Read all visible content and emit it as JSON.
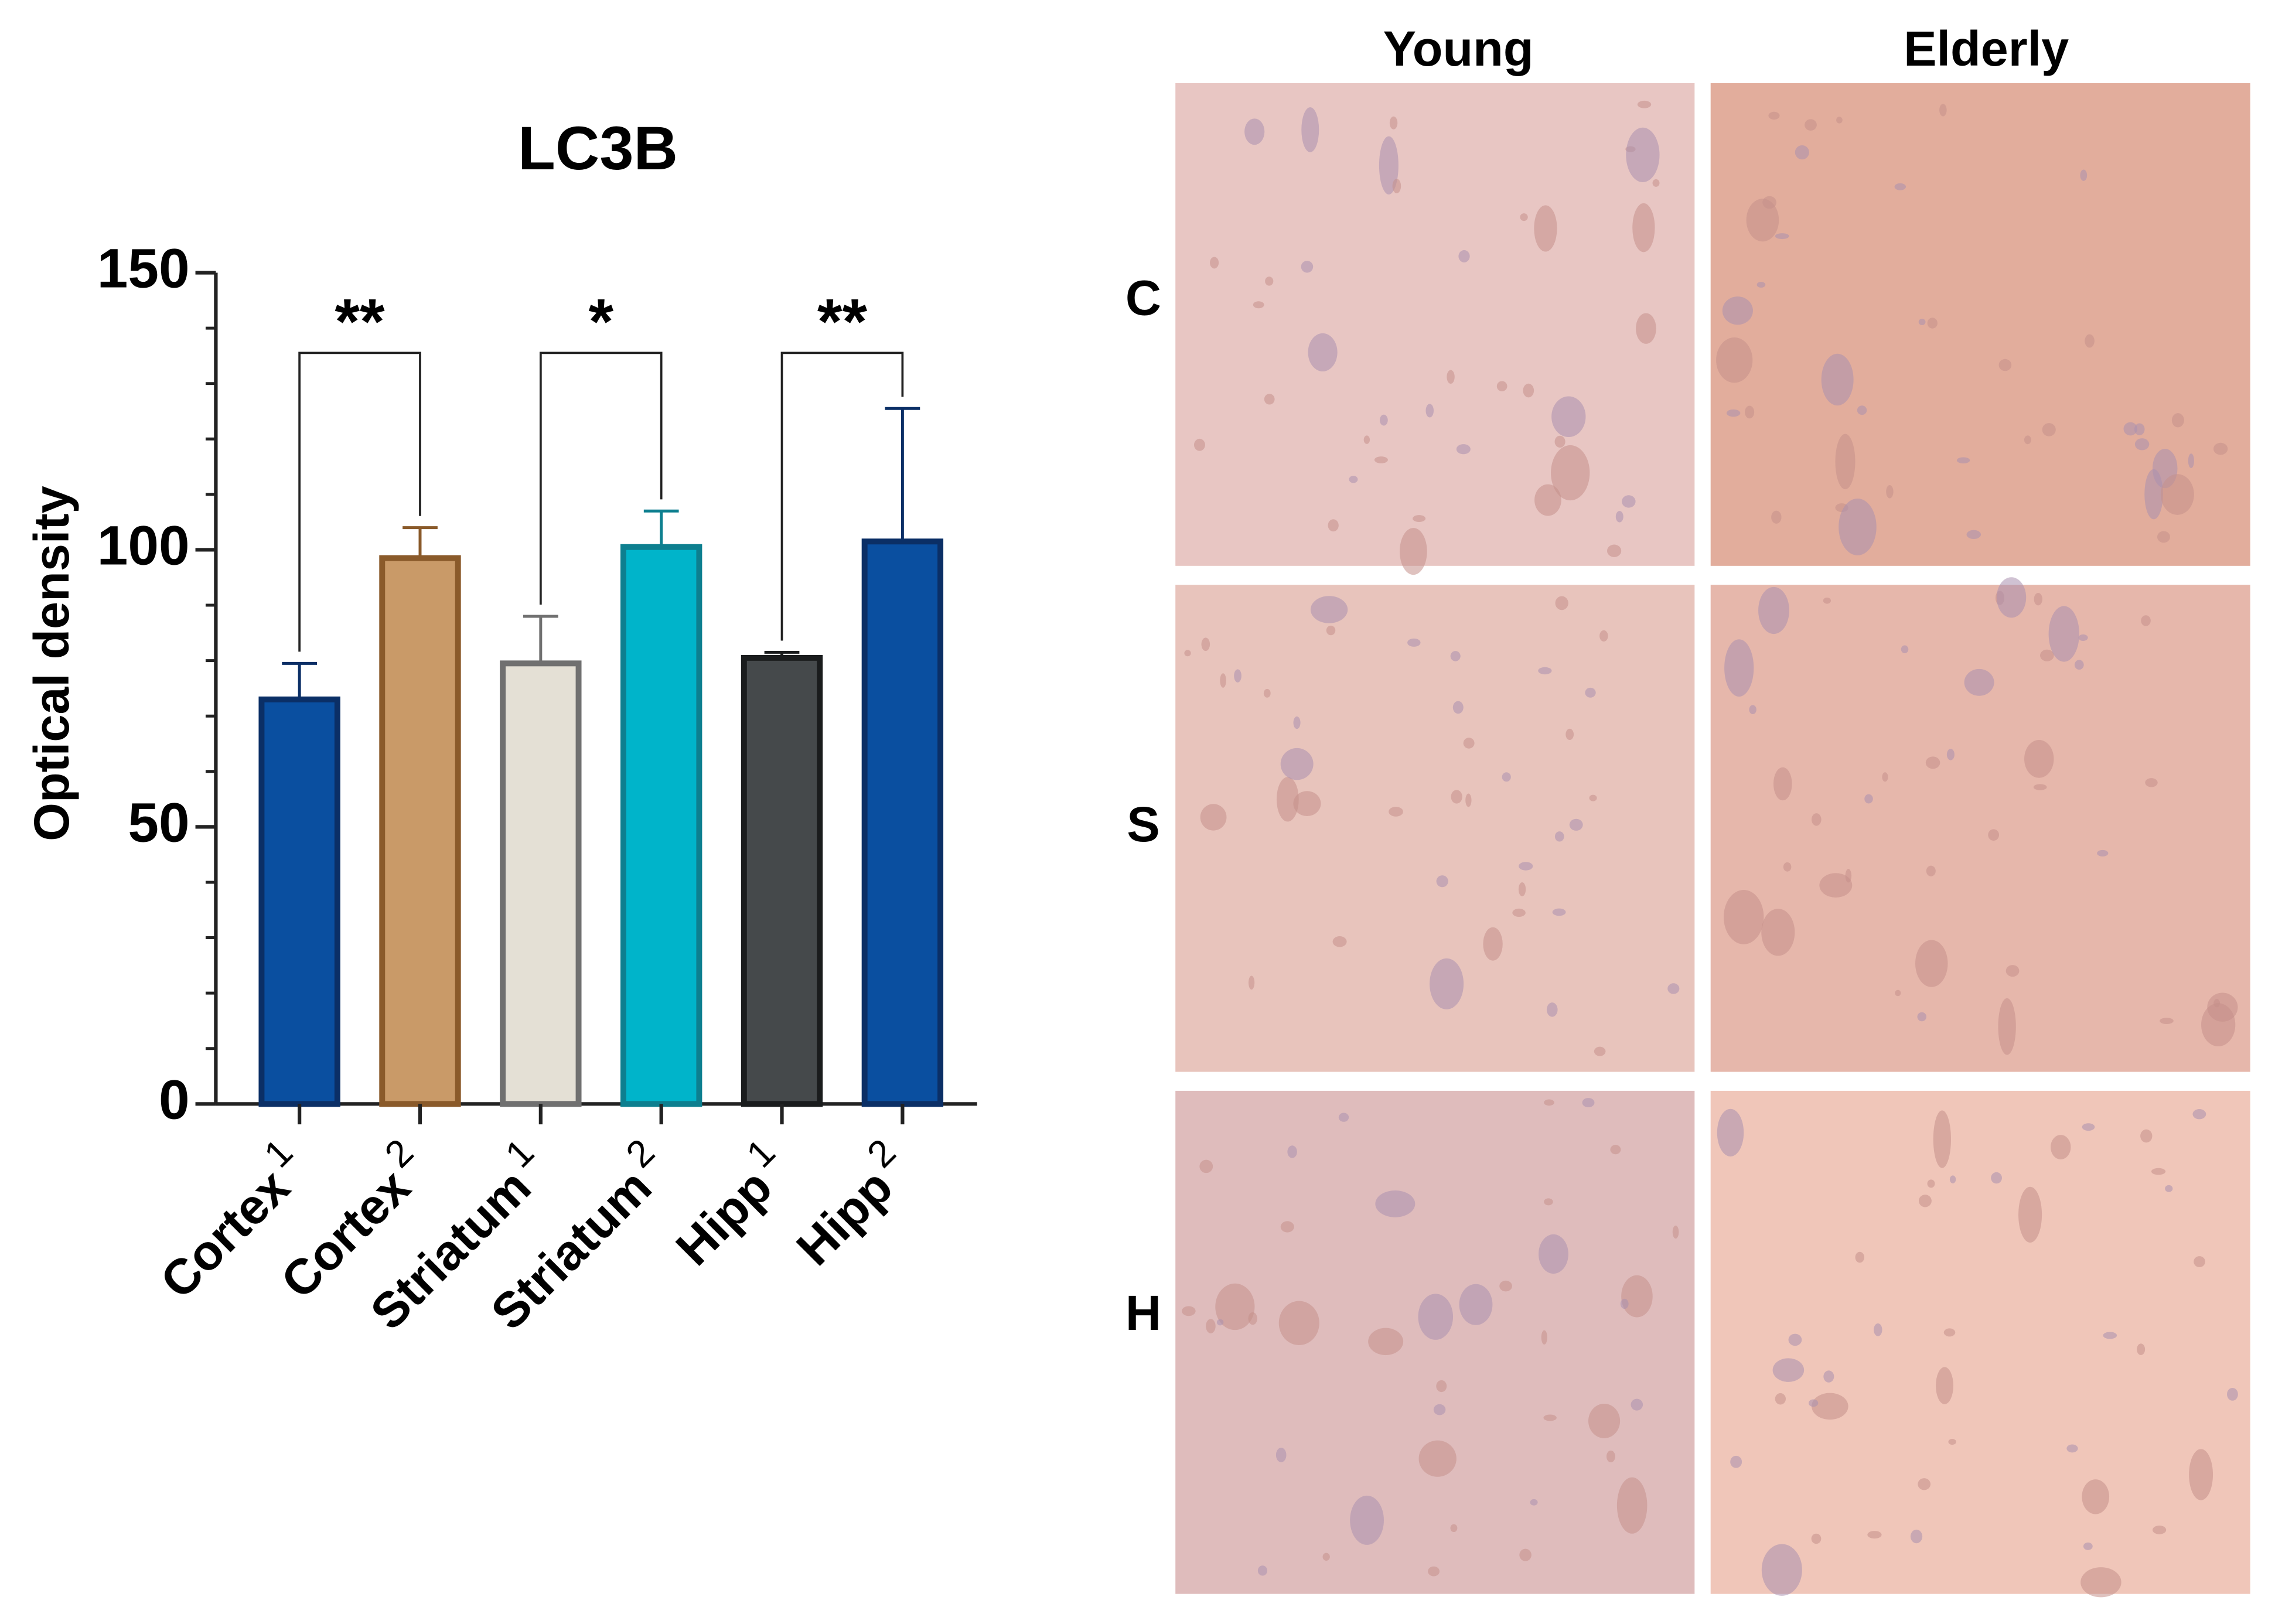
{
  "chart_data": {
    "type": "bar",
    "title": "LC3B",
    "y_label": "Optical density",
    "categories": [
      "Cortex",
      "Cortex",
      "Striatum",
      "Striatum",
      "Hipp",
      "Hipp"
    ],
    "category_superscripts": [
      1,
      2,
      1,
      2,
      1,
      2
    ],
    "values": [
      73,
      98.5,
      79.5,
      100.5,
      80.5,
      101.5
    ],
    "errors": [
      6.5,
      5.5,
      8.5,
      6.5,
      1,
      24
    ],
    "colors": [
      "#0a4fa0",
      "#c99a68",
      "#e4e0d5",
      "#00b4ca",
      "#45494b",
      "#0a4fa0"
    ],
    "edge_colors": [
      "#0b2f66",
      "#8a5a2a",
      "#707070",
      "#0d7f8f",
      "#1a1c1d",
      "#0b2f66"
    ],
    "significance": [
      "**",
      "*",
      "**"
    ],
    "ylim": [
      0,
      150
    ],
    "yticks": [
      0,
      50,
      100,
      150
    ],
    "yminorticks": [
      10,
      20,
      30,
      40,
      60,
      70,
      80,
      90,
      110,
      120,
      130,
      140
    ]
  },
  "micrographs": {
    "columns": [
      "Young",
      "Elderly"
    ],
    "rows": [
      "C",
      "S",
      "H"
    ]
  }
}
